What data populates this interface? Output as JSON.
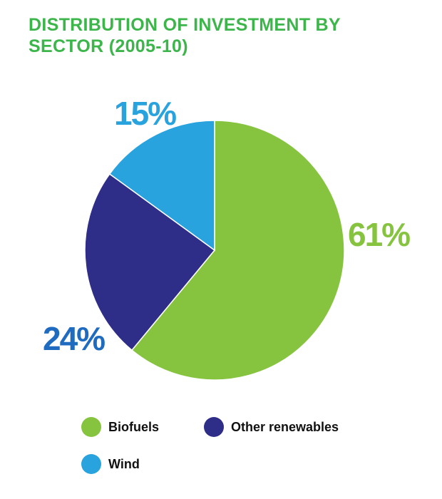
{
  "chart_data": {
    "type": "pie",
    "title": "DISTRIBUTION OF INVESTMENT BY SECTOR (2005-10)",
    "slices": [
      {
        "name": "Biofuels",
        "value": 61,
        "label": "61%",
        "color": "#86c440",
        "label_color": "#86c440"
      },
      {
        "name": "Other renewables",
        "value": 24,
        "label": "24%",
        "color": "#2e2d88",
        "label_color": "#1f6bbf"
      },
      {
        "name": "Wind",
        "value": 15,
        "label": "15%",
        "color": "#29a3de",
        "label_color": "#29a3de"
      }
    ],
    "legend": [
      "Biofuels",
      "Other renewables",
      "Wind"
    ],
    "legend_placement": "bottom"
  }
}
